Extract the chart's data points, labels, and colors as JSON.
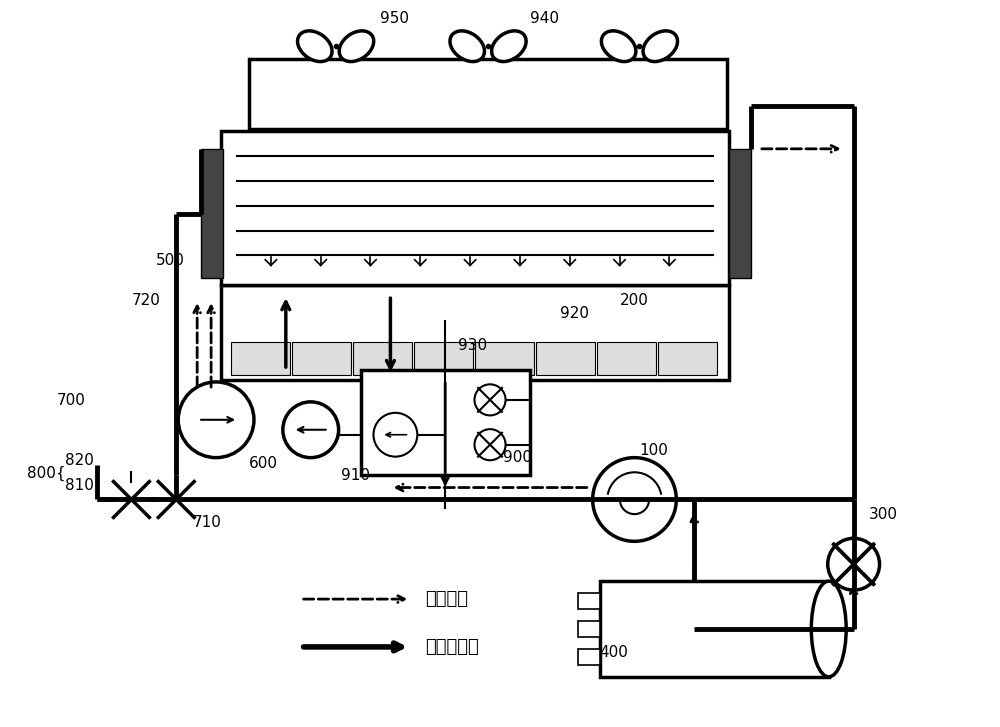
{
  "bg_color": "#ffffff",
  "line_color": "#000000",
  "lw_main": 2.5,
  "lw_thick": 3.5,
  "lw_thin": 1.5,
  "font_size": 11,
  "fig_width": 10.0,
  "fig_height": 7.27,
  "dpi": 100
}
